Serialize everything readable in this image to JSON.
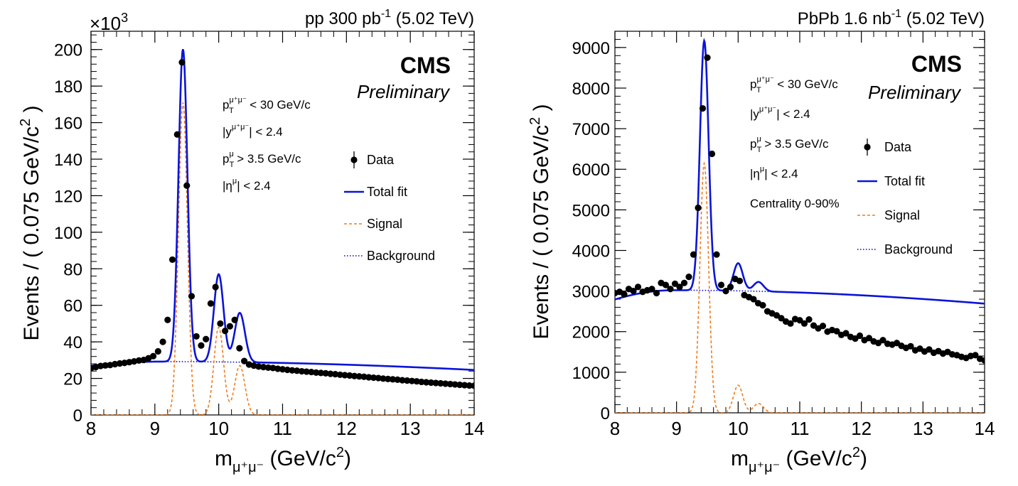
{
  "chart_data": [
    {
      "type": "scatter",
      "id": "pp",
      "title_text": "pp 300 pb",
      "title_sup": "-1",
      "title_energy": "(5.02 TeV)",
      "experiment": "CMS",
      "status": "Preliminary",
      "yscale_sup": "3",
      "yscale_base": "×10",
      "ylabel": "Events / ( 0.075 GeV/c",
      "ylabel_sup": "2",
      "ylabel_end": " )",
      "xlabel_m": "m",
      "xlabel_sub": "μ⁺μ⁻",
      "xlabel_units": "(GeV/c",
      "xlabel_sup": "2",
      "xlabel_end": ")",
      "xlim": [
        8,
        14
      ],
      "ylim": [
        0,
        210
      ],
      "xticks": [
        "8",
        "9",
        "10",
        "11",
        "12",
        "13",
        "14"
      ],
      "yticks": [
        "0",
        "20",
        "40",
        "60",
        "80",
        "100",
        "120",
        "140",
        "160",
        "180",
        "200"
      ],
      "cuts": [
        {
          "main": "p",
          "sub": "T",
          "sup": "μ⁺μ⁻",
          "rest": " < 30 GeV/c"
        },
        {
          "main": "|y",
          "sub": "",
          "sup": "μ⁺μ⁻",
          "rest": "| < 2.4"
        },
        {
          "main": "p",
          "sub": "T",
          "sup": "μ",
          "rest": " > 3.5 GeV/c"
        },
        {
          "main": "|η",
          "sub": "",
          "sup": "μ",
          "rest": "| < 2.4"
        }
      ],
      "legend": [
        "Data",
        "Total fit",
        "Signal",
        "Background"
      ],
      "model": {
        "bg": {
          "A": 29.2,
          "mu": 9.1,
          "a": 2.75,
          "b": 8.4
        },
        "peaks": [
          {
            "mu": 9.44,
            "sigma": 0.07,
            "amp": 171
          },
          {
            "mu": 10.0,
            "sigma": 0.075,
            "amp": 48
          },
          {
            "mu": 10.33,
            "sigma": 0.08,
            "amp": 27
          }
        ]
      },
      "data_x": [
        8.0,
        8.075,
        8.15,
        8.225,
        8.3,
        8.375,
        8.45,
        8.525,
        8.6,
        8.675,
        8.75,
        8.825,
        8.9,
        8.975,
        9.05,
        9.125,
        9.2,
        9.275,
        9.35,
        9.425,
        9.5,
        9.575,
        9.65,
        9.725,
        9.8,
        9.875,
        9.95,
        10.025,
        10.1,
        10.175,
        10.25,
        10.325,
        10.4,
        10.475,
        10.55,
        10.625,
        10.7,
        10.775,
        10.85,
        10.925,
        11.0,
        11.075,
        11.15,
        11.225,
        11.3,
        11.375,
        11.45,
        11.525,
        11.6,
        11.675,
        11.75,
        11.825,
        11.9,
        11.975,
        12.05,
        12.125,
        12.2,
        12.275,
        12.35,
        12.425,
        12.5,
        12.575,
        12.65,
        12.725,
        12.8,
        12.875,
        12.95,
        13.025,
        13.1,
        13.175,
        13.25,
        13.325,
        13.4,
        13.475,
        13.55,
        13.625,
        13.7,
        13.775,
        13.85,
        13.925,
        14.0
      ],
      "data_y": [
        25.5,
        26.2,
        26.8,
        27.1,
        27.3,
        27.8,
        28.2,
        28.5,
        28.9,
        29.3,
        29.8,
        30.1,
        31.0,
        32.2,
        34.8,
        40.0,
        52.0,
        85.0,
        153.5,
        193.0,
        125.5,
        65.0,
        43.0,
        38.0,
        41.5,
        61.0,
        70.0,
        50.0,
        46.0,
        48.5,
        52.0,
        36.5,
        29.5,
        27.6,
        27.0,
        26.5,
        26.2,
        25.9,
        25.7,
        25.3,
        25.0,
        24.7,
        24.4,
        24.2,
        23.9,
        23.7,
        23.5,
        23.2,
        23.0,
        22.8,
        22.5,
        22.3,
        22.0,
        21.8,
        21.6,
        21.3,
        21.1,
        20.9,
        20.6,
        20.4,
        20.2,
        19.9,
        19.7,
        19.5,
        19.3,
        19.0,
        18.8,
        18.6,
        18.4,
        18.1,
        17.9,
        17.7,
        17.5,
        17.3,
        17.1,
        16.9,
        16.7,
        16.5,
        16.3,
        16.1,
        16.0
      ]
    },
    {
      "type": "scatter",
      "id": "pbpb",
      "title_text": "PbPb 1.6 nb",
      "title_sup": "-1",
      "title_energy": "(5.02 TeV)",
      "experiment": "CMS",
      "status": "Preliminary",
      "ylabel": "Events / ( 0.075 GeV/c",
      "ylabel_sup": "2",
      "ylabel_end": " )",
      "xlabel_m": "m",
      "xlabel_sub": "μ⁺μ⁻",
      "xlabel_units": "(GeV/c",
      "xlabel_sup": "2",
      "xlabel_end": ")",
      "xlim": [
        8,
        14
      ],
      "ylim": [
        0,
        9400
      ],
      "xticks": [
        "8",
        "9",
        "10",
        "11",
        "12",
        "13",
        "14"
      ],
      "yticks": [
        "0",
        "1000",
        "2000",
        "3000",
        "4000",
        "5000",
        "6000",
        "7000",
        "8000",
        "9000"
      ],
      "cuts": [
        {
          "main": "p",
          "sub": "T",
          "sup": "μ⁺μ⁻",
          "rest": " < 30 GeV/c"
        },
        {
          "main": "|y",
          "sub": "",
          "sup": "μ⁺μ⁻",
          "rest": "| < 2.4"
        },
        {
          "main": "p",
          "sub": "T",
          "sup": "μ",
          "rest": " > 3.5 GeV/c"
        },
        {
          "main": "|η",
          "sub": "",
          "sup": "μ",
          "rest": "| < 2.4"
        },
        {
          "main": "Centrality 0-90%",
          "sub": "",
          "sup": "",
          "rest": ""
        }
      ],
      "legend": [
        "Data",
        "Total fit",
        "Signal",
        "Background"
      ],
      "model": {
        "bg": {
          "A": 3020,
          "mu": 8.95,
          "a": 2.4,
          "b": 10.5
        },
        "peaks": [
          {
            "mu": 9.45,
            "sigma": 0.07,
            "amp": 6150
          },
          {
            "mu": 10.0,
            "sigma": 0.075,
            "amp": 680
          },
          {
            "mu": 10.33,
            "sigma": 0.08,
            "amp": 230
          }
        ]
      },
      "data_x": [
        8.0,
        8.075,
        8.15,
        8.225,
        8.3,
        8.375,
        8.45,
        8.525,
        8.6,
        8.675,
        8.75,
        8.825,
        8.9,
        8.975,
        9.05,
        9.125,
        9.2,
        9.275,
        9.35,
        9.425,
        9.5,
        9.575,
        9.65,
        9.725,
        9.8,
        9.875,
        9.95,
        10.025,
        10.1,
        10.175,
        10.25,
        10.325,
        10.4,
        10.475,
        10.55,
        10.625,
        10.7,
        10.775,
        10.85,
        10.925,
        11.0,
        11.075,
        11.15,
        11.225,
        11.3,
        11.375,
        11.45,
        11.525,
        11.6,
        11.675,
        11.75,
        11.825,
        11.9,
        11.975,
        12.05,
        12.125,
        12.2,
        12.275,
        12.35,
        12.425,
        12.5,
        12.575,
        12.65,
        12.725,
        12.8,
        12.875,
        12.95,
        13.025,
        13.1,
        13.175,
        13.25,
        13.325,
        13.4,
        13.475,
        13.55,
        13.625,
        13.7,
        13.775,
        13.85,
        13.925,
        14.0
      ],
      "data_y": [
        2950,
        2980,
        2920,
        3050,
        3000,
        3100,
        2980,
        3020,
        3050,
        2950,
        3200,
        3150,
        3050,
        3180,
        3100,
        3200,
        3350,
        3900,
        5050,
        7500,
        8750,
        6380,
        3900,
        3150,
        3000,
        3100,
        3300,
        3250,
        2900,
        2850,
        2800,
        2700,
        2650,
        2500,
        2450,
        2400,
        2330,
        2250,
        2200,
        2310,
        2280,
        2200,
        2300,
        2150,
        2080,
        2140,
        2000,
        2040,
        2010,
        1920,
        1960,
        1870,
        1830,
        1900,
        1790,
        1840,
        1760,
        1720,
        1790,
        1700,
        1680,
        1720,
        1650,
        1600,
        1640,
        1540,
        1580,
        1510,
        1560,
        1480,
        1520,
        1460,
        1500,
        1440,
        1420,
        1380,
        1350,
        1400,
        1420,
        1330,
        1290
      ]
    }
  ]
}
